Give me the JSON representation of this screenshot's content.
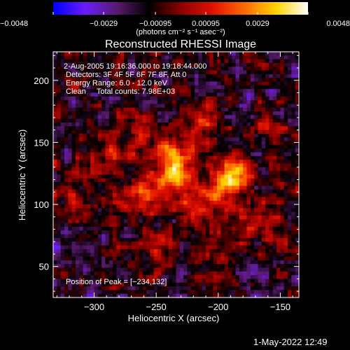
{
  "chart_data": {
    "type": "heatmap",
    "title": "Reconstructed RHESSI Image",
    "xlabel": "Heliocentric X (arcsec)",
    "ylabel": "Heliocentric Y (arcsec)",
    "xlim": [
      -333,
      -135
    ],
    "ylim": [
      25,
      223
    ],
    "xticks": [
      -300,
      -250,
      -200,
      -150
    ],
    "xtick_labels": [
      "−300",
      "−250",
      "−200",
      "−150"
    ],
    "yticks": [
      50,
      100,
      150,
      200
    ],
    "ytick_labels": [
      "50",
      "100",
      "150",
      "200"
    ],
    "colorbar": {
      "min": -0.0048,
      "max": 0.0048,
      "ticks": [
        -0.0048,
        -0.0029,
        -0.00095,
        0.00095,
        0.0029,
        0.0048
      ],
      "tick_labels": [
        "−0.0048",
        "−0.0029",
        "−0.00095",
        "0.00095",
        "0.0029",
        "0.0048"
      ],
      "unit_label": "(photons cm⁻² s⁻¹ asec⁻²)",
      "colors": [
        "#0000ff",
        "#6a1cff",
        "#5a1a6e",
        "#000000",
        "#8a0000",
        "#e01000",
        "#ff6a00",
        "#ffd400",
        "#ffffff"
      ]
    },
    "annotations": [
      " 2-Aug-2005 19:16:36.000 to 19:18:44.000",
      "Detectors: 3F 4F 5F 6F 7F 8F, Att 0",
      "Energy Range: 6.0 - 12.0 keV",
      "Clean     Total counts: 7.98E+03"
    ],
    "peak_label": "Position of Peak = [−234,132]",
    "peak": {
      "x": -234,
      "y": 132
    },
    "sources": [
      {
        "x": -235,
        "y": 132,
        "amp": 0.0048,
        "sigma": 11
      },
      {
        "x": -188,
        "y": 124,
        "amp": 0.0043,
        "sigma": 10
      },
      {
        "x": -258,
        "y": 108,
        "amp": 0.0028,
        "sigma": 13
      },
      {
        "x": -212,
        "y": 102,
        "amp": 0.0026,
        "sigma": 15
      },
      {
        "x": -265,
        "y": 155,
        "amp": 0.0022,
        "sigma": 12
      },
      {
        "x": -215,
        "y": 162,
        "amp": 0.002,
        "sigma": 11
      },
      {
        "x": -290,
        "y": 135,
        "amp": 0.0015,
        "sigma": 10
      },
      {
        "x": -170,
        "y": 82,
        "amp": 0.0016,
        "sigma": 12
      },
      {
        "x": -245,
        "y": 70,
        "amp": 0.0012,
        "sigma": 10
      },
      {
        "x": -305,
        "y": 95,
        "amp": 0.001,
        "sigma": 8
      },
      {
        "x": -160,
        "y": 160,
        "amp": 0.0012,
        "sigma": 9
      },
      {
        "x": -200,
        "y": 55,
        "amp": 0.0012,
        "sigma": 9
      }
    ],
    "grid": false
  },
  "footer": {
    "timestamp": "1-May-2022 12:49"
  }
}
